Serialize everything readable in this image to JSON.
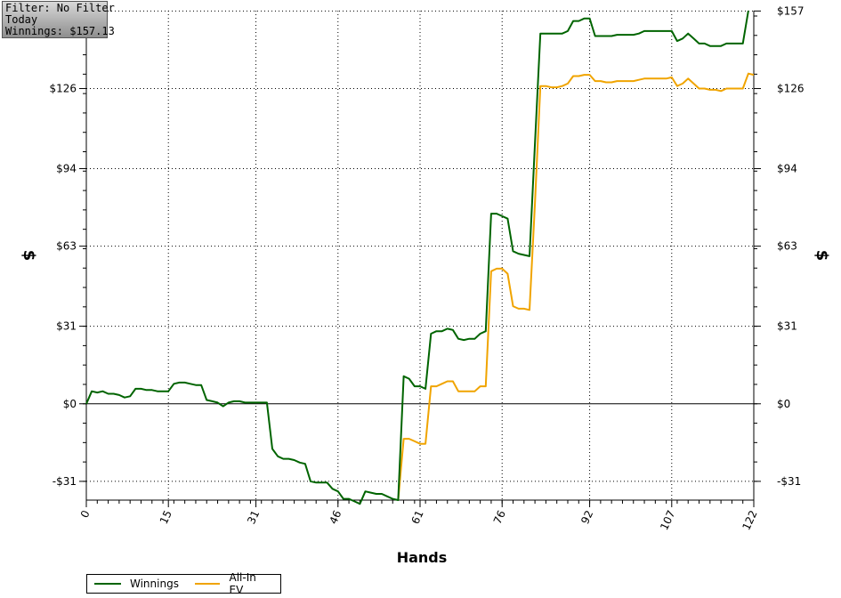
{
  "info_box": {
    "line1": "Filter: No Filter",
    "line2": "Today",
    "line3": "Winnings: $157.13"
  },
  "colors": {
    "winnings": "#006400",
    "allin": "#f0a400",
    "grid": "#000000"
  },
  "chart_data": {
    "type": "line",
    "xlabel": "Hands",
    "ylabel": "$",
    "xlim": [
      0,
      122
    ],
    "ylim": [
      -38.5,
      157.13
    ],
    "x_ticks": [
      0,
      15,
      31,
      46,
      61,
      76,
      92,
      107,
      122
    ],
    "y_ticks": [
      -31,
      0,
      31,
      63,
      94,
      126,
      157
    ],
    "y_tick_labels": [
      "-$31",
      "$0",
      "$31",
      "$63",
      "$94",
      "$126",
      "$157"
    ],
    "legend": "bottom-left",
    "series": [
      {
        "name": "Winnings",
        "points": [
          [
            0,
            0
          ],
          [
            1,
            5
          ],
          [
            2,
            4.5
          ],
          [
            3,
            5
          ],
          [
            4,
            4
          ],
          [
            5,
            4
          ],
          [
            6,
            3.5
          ],
          [
            7,
            2.5
          ],
          [
            8,
            3
          ],
          [
            9,
            6
          ],
          [
            10,
            6
          ],
          [
            11,
            5.5
          ],
          [
            12,
            5.5
          ],
          [
            13,
            5
          ],
          [
            14,
            5
          ],
          [
            15,
            5
          ],
          [
            16,
            8
          ],
          [
            17,
            8.5
          ],
          [
            18,
            8.5
          ],
          [
            19,
            8
          ],
          [
            20,
            7.5
          ],
          [
            21,
            7.5
          ],
          [
            22,
            1.5
          ],
          [
            23,
            1
          ],
          [
            24,
            0.5
          ],
          [
            25,
            -1
          ],
          [
            26,
            0.5
          ],
          [
            27,
            1
          ],
          [
            28,
            1
          ],
          [
            29,
            0.5
          ],
          [
            30,
            0.5
          ],
          [
            31,
            0.5
          ],
          [
            32,
            0.5
          ],
          [
            33,
            0.5
          ],
          [
            34,
            -18
          ],
          [
            35,
            -21
          ],
          [
            36,
            -22
          ],
          [
            37,
            -22
          ],
          [
            38,
            -22.5
          ],
          [
            39,
            -23.5
          ],
          [
            40,
            -24
          ],
          [
            41,
            -31
          ],
          [
            42,
            -31.5
          ],
          [
            43,
            -31.5
          ],
          [
            44,
            -31.5
          ],
          [
            45,
            -34
          ],
          [
            46,
            -35
          ],
          [
            47,
            -38
          ],
          [
            48,
            -38
          ],
          [
            49,
            -39
          ],
          [
            50,
            -40
          ],
          [
            51,
            -35
          ],
          [
            52,
            -35.5
          ],
          [
            53,
            -36
          ],
          [
            54,
            -36
          ],
          [
            55,
            -37
          ],
          [
            56,
            -38
          ],
          [
            57,
            -38.5
          ],
          [
            58,
            11
          ],
          [
            59,
            10
          ],
          [
            60,
            7
          ],
          [
            61,
            7
          ],
          [
            62,
            6
          ],
          [
            63,
            28
          ],
          [
            64,
            29
          ],
          [
            65,
            29
          ],
          [
            66,
            30
          ],
          [
            67,
            29.5
          ],
          [
            68,
            26
          ],
          [
            69,
            25.5
          ],
          [
            70,
            26
          ],
          [
            71,
            26
          ],
          [
            72,
            28
          ],
          [
            73,
            29
          ],
          [
            74,
            76
          ],
          [
            75,
            76
          ],
          [
            76,
            75
          ],
          [
            77,
            74
          ],
          [
            78,
            61
          ],
          [
            79,
            60
          ],
          [
            80,
            59.5
          ],
          [
            81,
            59
          ],
          [
            82,
            104
          ],
          [
            83,
            148
          ],
          [
            84,
            148
          ],
          [
            85,
            148
          ],
          [
            86,
            148
          ],
          [
            87,
            148
          ],
          [
            88,
            149
          ],
          [
            89,
            153
          ],
          [
            90,
            153
          ],
          [
            91,
            154
          ],
          [
            92,
            154
          ],
          [
            93,
            147
          ],
          [
            94,
            147
          ],
          [
            95,
            147
          ],
          [
            96,
            147
          ],
          [
            97,
            147.5
          ],
          [
            98,
            147.5
          ],
          [
            99,
            147.5
          ],
          [
            100,
            147.5
          ],
          [
            101,
            148
          ],
          [
            102,
            149
          ],
          [
            103,
            149
          ],
          [
            104,
            149
          ],
          [
            105,
            149
          ],
          [
            106,
            149
          ],
          [
            107,
            149
          ],
          [
            108,
            145
          ],
          [
            109,
            146
          ],
          [
            110,
            148
          ],
          [
            111,
            146
          ],
          [
            112,
            144
          ],
          [
            113,
            144
          ],
          [
            114,
            143
          ],
          [
            115,
            143
          ],
          [
            116,
            143
          ],
          [
            117,
            144
          ],
          [
            118,
            144
          ],
          [
            119,
            144
          ],
          [
            120,
            144
          ],
          [
            121,
            157.13
          ]
        ]
      },
      {
        "name": "All-In EV",
        "points": [
          [
            57,
            -38.5
          ],
          [
            58,
            -14
          ],
          [
            59,
            -14
          ],
          [
            60,
            -15
          ],
          [
            61,
            -16
          ],
          [
            62,
            -16
          ],
          [
            63,
            7
          ],
          [
            64,
            7
          ],
          [
            65,
            8
          ],
          [
            66,
            9
          ],
          [
            67,
            9
          ],
          [
            68,
            5
          ],
          [
            69,
            5
          ],
          [
            70,
            5
          ],
          [
            71,
            5
          ],
          [
            72,
            7
          ],
          [
            73,
            7
          ],
          [
            74,
            53
          ],
          [
            75,
            54
          ],
          [
            76,
            54
          ],
          [
            77,
            52
          ],
          [
            78,
            39
          ],
          [
            79,
            38
          ],
          [
            80,
            38
          ],
          [
            81,
            37.5
          ],
          [
            82,
            80
          ],
          [
            83,
            127
          ],
          [
            84,
            127
          ],
          [
            85,
            126.5
          ],
          [
            86,
            126.5
          ],
          [
            87,
            127
          ],
          [
            88,
            128
          ],
          [
            89,
            131
          ],
          [
            90,
            131
          ],
          [
            91,
            131.5
          ],
          [
            92,
            131.5
          ],
          [
            93,
            129
          ],
          [
            94,
            129
          ],
          [
            95,
            128.5
          ],
          [
            96,
            128.5
          ],
          [
            97,
            129
          ],
          [
            98,
            129
          ],
          [
            99,
            129
          ],
          [
            100,
            129
          ],
          [
            101,
            129.5
          ],
          [
            102,
            130
          ],
          [
            103,
            130
          ],
          [
            104,
            130
          ],
          [
            105,
            130
          ],
          [
            106,
            130
          ],
          [
            107,
            130.5
          ],
          [
            108,
            127
          ],
          [
            109,
            128
          ],
          [
            110,
            130
          ],
          [
            111,
            128
          ],
          [
            112,
            126
          ],
          [
            113,
            126
          ],
          [
            114,
            125.5
          ],
          [
            115,
            125.5
          ],
          [
            116,
            125
          ],
          [
            117,
            126
          ],
          [
            118,
            126
          ],
          [
            119,
            126
          ],
          [
            120,
            126
          ],
          [
            121,
            132
          ],
          [
            122,
            131.5
          ]
        ]
      }
    ]
  }
}
